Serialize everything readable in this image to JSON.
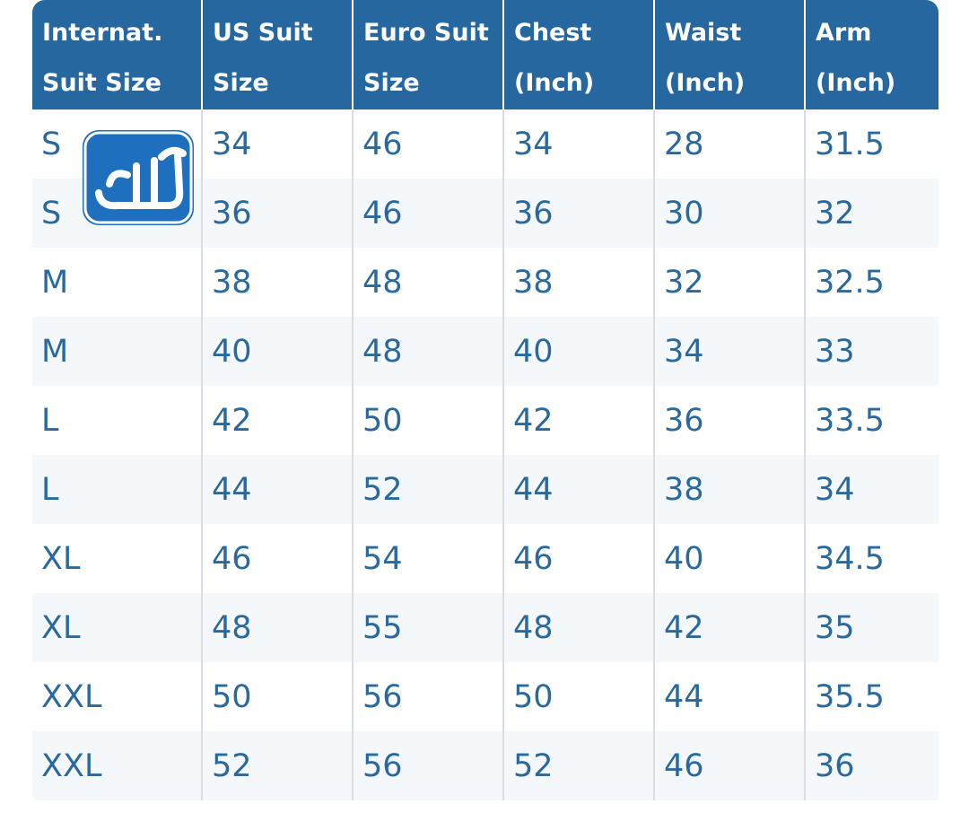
{
  "table": {
    "header": [
      [
        "Internat.",
        "Suit Size"
      ],
      [
        "US Suit",
        "Size"
      ],
      [
        "Euro Suit",
        "Size"
      ],
      [
        "Chest",
        "(Inch)"
      ],
      [
        "Waist",
        "(Inch)"
      ],
      [
        "Arm",
        "(Inch)"
      ]
    ],
    "rows": [
      [
        "S",
        34,
        46,
        34,
        28,
        31.5
      ],
      [
        "S",
        36,
        46,
        36,
        30,
        32
      ],
      [
        "M",
        38,
        48,
        38,
        32,
        32.5
      ],
      [
        "M",
        40,
        48,
        40,
        34,
        33
      ],
      [
        "L",
        42,
        50,
        42,
        36,
        33.5
      ],
      [
        "L",
        44,
        52,
        44,
        38,
        34
      ],
      [
        "XL",
        46,
        54,
        46,
        40,
        34.5
      ],
      [
        "XL",
        48,
        55,
        48,
        42,
        35
      ],
      [
        "XXL",
        50,
        56,
        50,
        44,
        35.5
      ],
      [
        "XXL",
        52,
        56,
        52,
        46,
        36
      ]
    ]
  }
}
